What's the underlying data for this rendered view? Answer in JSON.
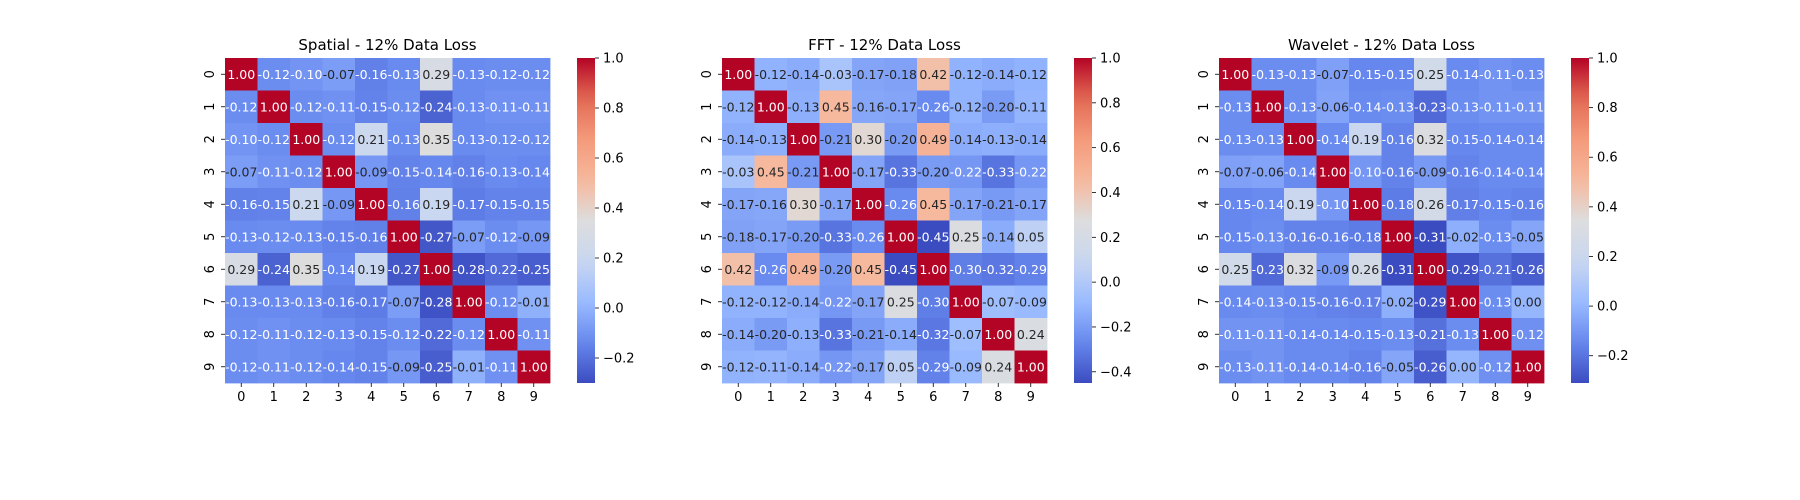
{
  "colormap": {
    "name": "coolwarm",
    "stops": [
      "#3b4cc0",
      "#6788ee",
      "#9abbff",
      "#c9d7f0",
      "#dddddd",
      "#f7b89c",
      "#f49a7b",
      "#e36a53",
      "#b40426"
    ]
  },
  "chart_data": [
    {
      "type": "heatmap",
      "title": "Spatial - 12% Data Loss",
      "xlabel": "",
      "ylabel": "",
      "x_ticks": [
        "0",
        "1",
        "2",
        "3",
        "4",
        "5",
        "6",
        "7",
        "8",
        "9"
      ],
      "y_ticks": [
        "0",
        "1",
        "2",
        "3",
        "4",
        "5",
        "6",
        "7",
        "8",
        "9"
      ],
      "colorbar": {
        "vmin": -0.3,
        "vmax": 1.0,
        "ticks": [
          "-0.2",
          "0.0",
          "0.2",
          "0.4",
          "0.6",
          "0.8",
          "1.0"
        ]
      },
      "values": [
        [
          1.0,
          -0.12,
          -0.1,
          -0.07,
          -0.16,
          -0.13,
          0.29,
          -0.13,
          -0.12,
          -0.12
        ],
        [
          -0.12,
          1.0,
          -0.12,
          -0.11,
          -0.15,
          -0.12,
          -0.24,
          -0.13,
          -0.11,
          -0.11
        ],
        [
          -0.1,
          -0.12,
          1.0,
          -0.12,
          0.21,
          -0.13,
          0.35,
          -0.13,
          -0.12,
          -0.12
        ],
        [
          -0.07,
          -0.11,
          -0.12,
          1.0,
          -0.09,
          -0.15,
          -0.14,
          -0.16,
          -0.13,
          -0.14
        ],
        [
          -0.16,
          -0.15,
          0.21,
          -0.09,
          1.0,
          -0.16,
          0.19,
          -0.17,
          -0.15,
          -0.15
        ],
        [
          -0.13,
          -0.12,
          -0.13,
          -0.15,
          -0.16,
          1.0,
          -0.27,
          -0.07,
          -0.12,
          -0.09
        ],
        [
          0.29,
          -0.24,
          0.35,
          -0.14,
          0.19,
          -0.27,
          1.0,
          -0.28,
          -0.22,
          -0.25
        ],
        [
          -0.13,
          -0.13,
          -0.13,
          -0.16,
          -0.17,
          -0.07,
          -0.28,
          1.0,
          -0.12,
          -0.01
        ],
        [
          -0.12,
          -0.11,
          -0.12,
          -0.13,
          -0.15,
          -0.12,
          -0.22,
          -0.12,
          1.0,
          -0.11
        ],
        [
          -0.12,
          -0.11,
          -0.12,
          -0.14,
          -0.15,
          -0.09,
          -0.25,
          -0.01,
          -0.11,
          1.0
        ]
      ]
    },
    {
      "type": "heatmap",
      "title": "FFT - 12% Data Loss",
      "xlabel": "",
      "ylabel": "",
      "x_ticks": [
        "0",
        "1",
        "2",
        "3",
        "4",
        "5",
        "6",
        "7",
        "8",
        "9"
      ],
      "y_ticks": [
        "0",
        "1",
        "2",
        "3",
        "4",
        "5",
        "6",
        "7",
        "8",
        "9"
      ],
      "colorbar": {
        "vmin": -0.45,
        "vmax": 1.0,
        "ticks": [
          "-0.4",
          "-0.2",
          "0.0",
          "0.2",
          "0.4",
          "0.6",
          "0.8",
          "1.0"
        ]
      },
      "values": [
        [
          1.0,
          -0.12,
          -0.14,
          -0.03,
          -0.17,
          -0.18,
          0.42,
          -0.12,
          -0.14,
          -0.12
        ],
        [
          -0.12,
          1.0,
          -0.13,
          0.45,
          -0.16,
          -0.17,
          -0.26,
          -0.12,
          -0.2,
          -0.11
        ],
        [
          -0.14,
          -0.13,
          1.0,
          -0.21,
          0.3,
          -0.2,
          0.49,
          -0.14,
          -0.13,
          -0.14
        ],
        [
          -0.03,
          0.45,
          -0.21,
          1.0,
          -0.17,
          -0.33,
          -0.2,
          -0.22,
          -0.33,
          -0.22
        ],
        [
          -0.17,
          -0.16,
          0.3,
          -0.17,
          1.0,
          -0.26,
          0.45,
          -0.17,
          -0.21,
          -0.17
        ],
        [
          -0.18,
          -0.17,
          -0.2,
          -0.33,
          -0.26,
          1.0,
          -0.45,
          0.25,
          -0.14,
          0.05
        ],
        [
          0.42,
          -0.26,
          0.49,
          -0.2,
          0.45,
          -0.45,
          1.0,
          -0.3,
          -0.32,
          -0.29
        ],
        [
          -0.12,
          -0.12,
          -0.14,
          -0.22,
          -0.17,
          0.25,
          -0.3,
          1.0,
          -0.07,
          -0.09
        ],
        [
          -0.14,
          -0.2,
          -0.13,
          -0.33,
          -0.21,
          -0.14,
          -0.32,
          -0.07,
          1.0,
          0.24
        ],
        [
          -0.12,
          -0.11,
          -0.14,
          -0.22,
          -0.17,
          0.05,
          -0.29,
          -0.09,
          0.24,
          1.0
        ]
      ]
    },
    {
      "type": "heatmap",
      "title": "Wavelet - 12% Data Loss",
      "xlabel": "",
      "ylabel": "",
      "x_ticks": [
        "0",
        "1",
        "2",
        "3",
        "4",
        "5",
        "6",
        "7",
        "8",
        "9"
      ],
      "y_ticks": [
        "0",
        "1",
        "2",
        "3",
        "4",
        "5",
        "6",
        "7",
        "8",
        "9"
      ],
      "colorbar": {
        "vmin": -0.31,
        "vmax": 1.0,
        "ticks": [
          "-0.2",
          "0.0",
          "0.2",
          "0.4",
          "0.6",
          "0.8",
          "1.0"
        ]
      },
      "values": [
        [
          1.0,
          -0.13,
          -0.13,
          -0.07,
          -0.15,
          -0.15,
          0.25,
          -0.14,
          -0.11,
          -0.13
        ],
        [
          -0.13,
          1.0,
          -0.13,
          -0.06,
          -0.14,
          -0.13,
          -0.23,
          -0.13,
          -0.11,
          -0.11
        ],
        [
          -0.13,
          -0.13,
          1.0,
          -0.14,
          0.19,
          -0.16,
          0.32,
          -0.15,
          -0.14,
          -0.14
        ],
        [
          -0.07,
          -0.06,
          -0.14,
          1.0,
          -0.1,
          -0.16,
          -0.09,
          -0.16,
          -0.14,
          -0.14
        ],
        [
          -0.15,
          -0.14,
          0.19,
          -0.1,
          1.0,
          -0.18,
          0.26,
          -0.17,
          -0.15,
          -0.16
        ],
        [
          -0.15,
          -0.13,
          -0.16,
          -0.16,
          -0.18,
          1.0,
          -0.31,
          -0.02,
          -0.13,
          -0.05
        ],
        [
          0.25,
          -0.23,
          0.32,
          -0.09,
          0.26,
          -0.31,
          1.0,
          -0.29,
          -0.21,
          -0.26
        ],
        [
          -0.14,
          -0.13,
          -0.15,
          -0.16,
          -0.17,
          -0.02,
          -0.29,
          1.0,
          -0.13,
          0.0
        ],
        [
          -0.11,
          -0.11,
          -0.14,
          -0.14,
          -0.15,
          -0.13,
          -0.21,
          -0.13,
          1.0,
          -0.12
        ],
        [
          -0.13,
          -0.11,
          -0.14,
          -0.14,
          -0.16,
          -0.05,
          -0.26,
          0.0,
          -0.12,
          1.0
        ]
      ]
    }
  ]
}
